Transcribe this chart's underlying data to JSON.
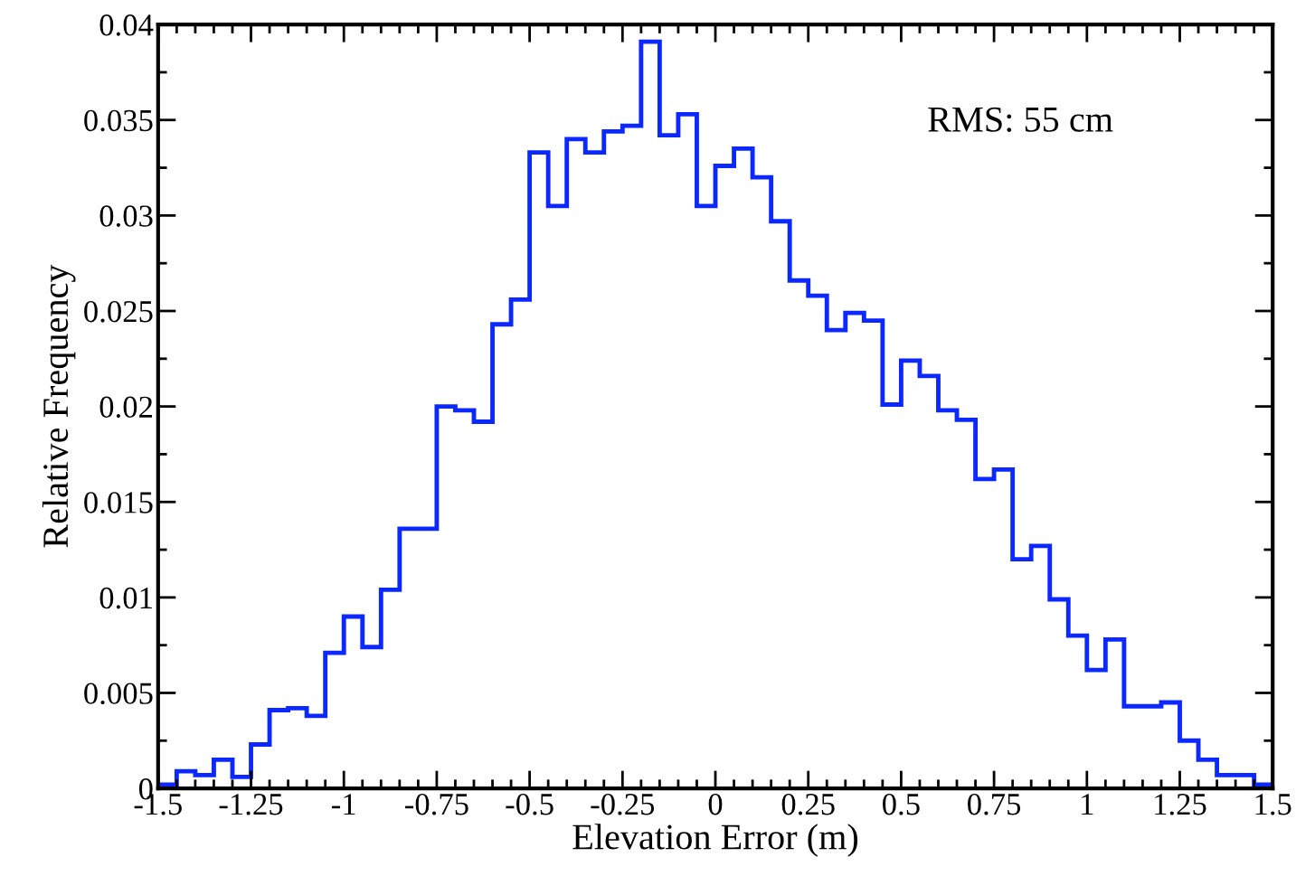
{
  "chart_data": {
    "type": "histogram",
    "xlabel": "Elevation Error (m)",
    "ylabel": "Relative Frequency",
    "annotations": [
      "RMS: 55 cm"
    ],
    "bins": [
      -1.5,
      -1.45,
      -1.4,
      -1.35,
      -1.3,
      -1.25,
      -1.2,
      -1.15,
      -1.1,
      -1.05,
      -1.0,
      -0.95,
      -0.9,
      -0.85,
      -0.8,
      -0.75,
      -0.7,
      -0.65,
      -0.6,
      -0.55,
      -0.5,
      -0.45,
      -0.4,
      -0.35,
      -0.3,
      -0.25,
      -0.2,
      -0.15,
      -0.1,
      -0.05,
      0.0,
      0.05,
      0.1,
      0.15,
      0.2,
      0.25,
      0.3,
      0.35,
      0.4,
      0.45,
      0.5,
      0.55,
      0.6,
      0.65,
      0.7,
      0.75,
      0.8,
      0.85,
      0.9,
      0.95,
      1.0,
      1.05,
      1.1,
      1.15,
      1.2,
      1.25,
      1.3,
      1.35,
      1.4,
      1.45,
      1.5
    ],
    "values": [
      0.0002,
      0.0009,
      0.0007,
      0.0015,
      0.0006,
      0.0023,
      0.0041,
      0.0042,
      0.0038,
      0.0071,
      0.009,
      0.0074,
      0.0104,
      0.0136,
      0.0136,
      0.02,
      0.0198,
      0.0192,
      0.0243,
      0.0256,
      0.0333,
      0.0305,
      0.034,
      0.0333,
      0.0344,
      0.0347,
      0.0391,
      0.0342,
      0.0353,
      0.0305,
      0.0326,
      0.0335,
      0.032,
      0.0297,
      0.0266,
      0.0258,
      0.024,
      0.0249,
      0.0245,
      0.0201,
      0.0224,
      0.0216,
      0.0198,
      0.0193,
      0.0162,
      0.0167,
      0.012,
      0.0127,
      0.0099,
      0.008,
      0.0062,
      0.0078,
      0.0043,
      0.0043,
      0.0045,
      0.0025,
      0.0015,
      0.0007,
      0.0007,
      0.0002
    ],
    "color": "#0a28ff",
    "xlim": [
      -1.5,
      1.5
    ],
    "xticks": [
      {
        "value": -1.5,
        "label": "-1.5"
      },
      {
        "value": -1.25,
        "label": "-1.25"
      },
      {
        "value": -1,
        "label": "-1"
      },
      {
        "value": -0.75,
        "label": "-0.75"
      },
      {
        "value": -0.5,
        "label": "-0.5"
      },
      {
        "value": -0.25,
        "label": "-0.25"
      },
      0,
      0.25,
      0.5,
      0.75,
      1,
      1.25,
      1.5
    ],
    "ylim": [
      0,
      0.04
    ],
    "yticks": [
      0,
      0.005,
      0.01,
      0.015,
      0.02,
      0.025,
      0.03,
      0.035,
      0.04
    ],
    "grid": false,
    "legend": false
  }
}
